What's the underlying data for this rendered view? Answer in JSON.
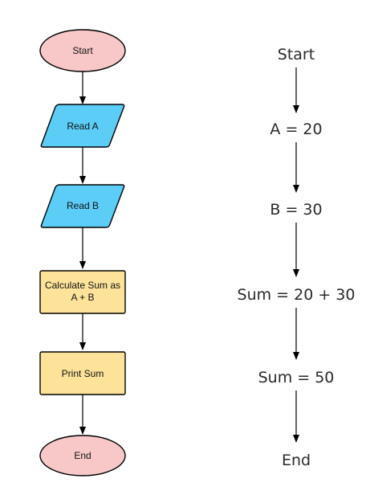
{
  "flowchart": {
    "start": "Start",
    "read_a": "Read A",
    "read_b": "Read B",
    "calculate_line1": "Calculate Sum as",
    "calculate_line2": "A + B",
    "print": "Print Sum",
    "end": "End"
  },
  "trace": {
    "start": "Start",
    "a_value": "A = 20",
    "b_value": "B = 30",
    "sum_expression": "Sum = 20 + 30",
    "sum_result": "Sum = 50",
    "end": "End"
  },
  "colors": {
    "terminal_fill": "#f8c8c8",
    "io_fill": "#5ccdf7",
    "process_fill": "#fde39a",
    "stroke": "#000000"
  }
}
